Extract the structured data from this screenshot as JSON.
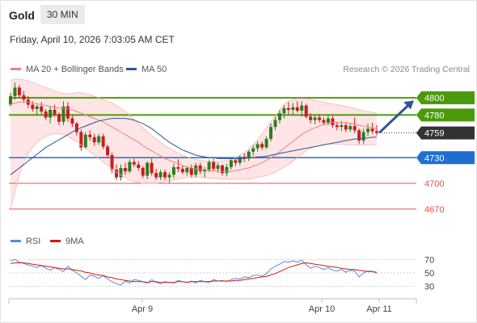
{
  "header": {
    "symbol": "Gold",
    "timeframe": "30 MIN",
    "datetime": "Friday, April 10, 2026 7:03:05 AM CET"
  },
  "legend_main": [
    {
      "label": "MA 20 + Bollinger Bands",
      "color": "#f08080"
    },
    {
      "label": "MA 50",
      "color": "#2f5597"
    }
  ],
  "credit": "Research © 2026 Trading Central",
  "legend_rsi": [
    {
      "label": "RSI",
      "color": "#5b8bd9"
    },
    {
      "label": "9MA",
      "color": "#d11919"
    }
  ],
  "colors": {
    "up": "#2e7d1f",
    "down": "#c61e1e",
    "resistance": "#4a9a0b",
    "support": "#1f6fd1",
    "target": "#e35050",
    "last": "#333333",
    "bands_fill": "#ffe0e0",
    "ma20": "#f08080",
    "ma50": "#2f5597",
    "rsi": "#5b8bd9",
    "rsi_ma": "#d11919",
    "arrow": "#2f5597"
  },
  "chart_data": {
    "type": "candlestick",
    "instrument": "Gold",
    "interval": "30 MIN",
    "x_labels": [
      "Apr 9",
      "Apr 10",
      "Apr 11"
    ],
    "y_range": [
      4650,
      4820
    ],
    "current_price": 4759,
    "levels": [
      {
        "label": "4800",
        "value": 4800,
        "kind": "resistance"
      },
      {
        "label": "4780",
        "value": 4780,
        "kind": "resistance"
      },
      {
        "label": "4759",
        "value": 4759,
        "kind": "last"
      },
      {
        "label": "4730",
        "value": 4730,
        "kind": "support"
      },
      {
        "label": "4700",
        "value": 4700,
        "kind": "target"
      },
      {
        "label": "4670",
        "value": 4670,
        "kind": "target"
      }
    ],
    "candles": [
      [
        4792,
        4806,
        4790,
        4802
      ],
      [
        4802,
        4818,
        4798,
        4812
      ],
      [
        4812,
        4815,
        4800,
        4803
      ],
      [
        4803,
        4808,
        4795,
        4798
      ],
      [
        4798,
        4802,
        4788,
        4792
      ],
      [
        4792,
        4796,
        4784,
        4787
      ],
      [
        4787,
        4792,
        4780,
        4790
      ],
      [
        4790,
        4795,
        4781,
        4784
      ],
      [
        4784,
        4787,
        4774,
        4777
      ],
      [
        4777,
        4790,
        4770,
        4786
      ],
      [
        4786,
        4792,
        4778,
        4781
      ],
      [
        4781,
        4783,
        4768,
        4772
      ],
      [
        4772,
        4796,
        4768,
        4790
      ],
      [
        4790,
        4795,
        4772,
        4776
      ],
      [
        4776,
        4780,
        4766,
        4770
      ],
      [
        4770,
        4772,
        4756,
        4760
      ],
      [
        4760,
        4763,
        4738,
        4742
      ],
      [
        4742,
        4760,
        4740,
        4757
      ],
      [
        4757,
        4762,
        4750,
        4754
      ],
      [
        4754,
        4758,
        4744,
        4748
      ],
      [
        4748,
        4758,
        4745,
        4755
      ],
      [
        4755,
        4758,
        4740,
        4743
      ],
      [
        4743,
        4745,
        4730,
        4733
      ],
      [
        4733,
        4736,
        4712,
        4716
      ],
      [
        4716,
        4722,
        4704,
        4707
      ],
      [
        4707,
        4722,
        4703,
        4718
      ],
      [
        4718,
        4724,
        4710,
        4714
      ],
      [
        4714,
        4728,
        4712,
        4725
      ],
      [
        4725,
        4729,
        4719,
        4722
      ],
      [
        4722,
        4726,
        4715,
        4718
      ],
      [
        4718,
        4720,
        4706,
        4709
      ],
      [
        4709,
        4726,
        4705,
        4724
      ],
      [
        4724,
        4729,
        4709,
        4712
      ],
      [
        4712,
        4717,
        4704,
        4707
      ],
      [
        4707,
        4716,
        4704,
        4713
      ],
      [
        4713,
        4716,
        4704,
        4707
      ],
      [
        4707,
        4713,
        4700,
        4710
      ],
      [
        4710,
        4723,
        4706,
        4719
      ],
      [
        4719,
        4728,
        4713,
        4717
      ],
      [
        4717,
        4721,
        4711,
        4713
      ],
      [
        4713,
        4720,
        4709,
        4718
      ],
      [
        4718,
        4722,
        4707,
        4710
      ],
      [
        4710,
        4724,
        4707,
        4721
      ],
      [
        4721,
        4724,
        4711,
        4714
      ],
      [
        4714,
        4719,
        4706,
        4716
      ],
      [
        4716,
        4728,
        4713,
        4725
      ],
      [
        4725,
        4729,
        4714,
        4717
      ],
      [
        4717,
        4724,
        4712,
        4721
      ],
      [
        4721,
        4722,
        4709,
        4712
      ],
      [
        4712,
        4723,
        4708,
        4719
      ],
      [
        4719,
        4729,
        4716,
        4727
      ],
      [
        4727,
        4730,
        4720,
        4724
      ],
      [
        4724,
        4733,
        4721,
        4731
      ],
      [
        4731,
        4735,
        4725,
        4729
      ],
      [
        4729,
        4739,
        4726,
        4737
      ],
      [
        4737,
        4745,
        4732,
        4741
      ],
      [
        4741,
        4749,
        4737,
        4746
      ],
      [
        4746,
        4749,
        4739,
        4742
      ],
      [
        4742,
        4755,
        4740,
        4752
      ],
      [
        4752,
        4770,
        4749,
        4766
      ],
      [
        4766,
        4778,
        4762,
        4774
      ],
      [
        4774,
        4786,
        4770,
        4782
      ],
      [
        4782,
        4792,
        4776,
        4788
      ],
      [
        4788,
        4795,
        4781,
        4786
      ],
      [
        4786,
        4794,
        4780,
        4789
      ],
      [
        4789,
        4796,
        4783,
        4785
      ],
      [
        4785,
        4796,
        4778,
        4791
      ],
      [
        4791,
        4793,
        4776,
        4778
      ],
      [
        4778,
        4782,
        4770,
        4774
      ],
      [
        4774,
        4780,
        4769,
        4777
      ],
      [
        4777,
        4781,
        4771,
        4774
      ],
      [
        4774,
        4777,
        4768,
        4771
      ],
      [
        4771,
        4780,
        4768,
        4776
      ],
      [
        4776,
        4779,
        4765,
        4768
      ],
      [
        4768,
        4772,
        4762,
        4766
      ],
      [
        4766,
        4773,
        4761,
        4768
      ],
      [
        4768,
        4771,
        4760,
        4763
      ],
      [
        4763,
        4770,
        4760,
        4767
      ],
      [
        4767,
        4777,
        4759,
        4762
      ],
      [
        4762,
        4764,
        4746,
        4750
      ],
      [
        4750,
        4764,
        4746,
        4760
      ],
      [
        4760,
        4770,
        4755,
        4764
      ],
      [
        4764,
        4771,
        4758,
        4761
      ],
      [
        4761,
        4768,
        4756,
        4759
      ]
    ],
    "ma20": [
      4792,
      4794,
      4795,
      4795,
      4795,
      4794,
      4793,
      4792,
      4791,
      4790,
      4789,
      4788,
      4788,
      4787,
      4786,
      4784,
      4782,
      4780,
      4778,
      4776,
      4774,
      4772,
      4769,
      4766,
      4763,
      4760,
      4757,
      4754,
      4751,
      4748,
      4744,
      4741,
      4738,
      4735,
      4732,
      4729,
      4727,
      4725,
      4723,
      4721,
      4719,
      4718,
      4717,
      4716,
      4716,
      4715,
      4715,
      4715,
      4714,
      4714,
      4714,
      4715,
      4716,
      4717,
      4718,
      4720,
      4722,
      4724,
      4727,
      4730,
      4733,
      4737,
      4741,
      4745,
      4749,
      4753,
      4757,
      4760,
      4763,
      4765,
      4767,
      4769,
      4770,
      4771,
      4771,
      4771,
      4771,
      4770,
      4769,
      4768,
      4767,
      4766,
      4765,
      4764
    ],
    "bb_upper": [
      4820,
      4822,
      4822,
      4821,
      4820,
      4818,
      4816,
      4814,
      4812,
      4810,
      4808,
      4806,
      4805,
      4805,
      4805,
      4806,
      4806,
      4805,
      4804,
      4802,
      4800,
      4798,
      4796,
      4794,
      4791,
      4788,
      4784,
      4780,
      4775,
      4770,
      4765,
      4760,
      4756,
      4752,
      4748,
      4744,
      4741,
      4738,
      4735,
      4733,
      4731,
      4729,
      4728,
      4727,
      4726,
      4726,
      4726,
      4726,
      4726,
      4727,
      4728,
      4730,
      4733,
      4736,
      4740,
      4745,
      4751,
      4758,
      4765,
      4772,
      4779,
      4786,
      4792,
      4796,
      4798,
      4799,
      4799,
      4799,
      4798,
      4797,
      4796,
      4795,
      4794,
      4793,
      4792,
      4791,
      4790,
      4789,
      4788,
      4786,
      4785,
      4784,
      4783,
      4782
    ],
    "bb_lower": [
      4670,
      4690,
      4710,
      4725,
      4735,
      4742,
      4748,
      4752,
      4755,
      4757,
      4758,
      4758,
      4757,
      4755,
      4752,
      4749,
      4745,
      4741,
      4737,
      4733,
      4729,
      4725,
      4721,
      4717,
      4713,
      4710,
      4707,
      4704,
      4702,
      4701,
      4700,
      4700,
      4700,
      4700,
      4701,
      4702,
      4703,
      4704,
      4705,
      4706,
      4707,
      4707,
      4707,
      4707,
      4707,
      4706,
      4706,
      4706,
      4705,
      4705,
      4705,
      4705,
      4705,
      4705,
      4705,
      4706,
      4707,
      4708,
      4709,
      4711,
      4713,
      4716,
      4719,
      4722,
      4726,
      4730,
      4734,
      4738,
      4741,
      4743,
      4744,
      4745,
      4746,
      4746,
      4746,
      4746,
      4745,
      4745,
      4745,
      4745,
      4745,
      4745,
      4745,
      4745
    ],
    "ma50": [
      4710,
      4714,
      4718,
      4722,
      4726,
      4730,
      4734,
      4738,
      4742,
      4745,
      4748,
      4751,
      4754,
      4757,
      4760,
      4763,
      4765,
      4767,
      4769,
      4771,
      4773,
      4774,
      4775,
      4776,
      4776,
      4776,
      4776,
      4775,
      4774,
      4772,
      4770,
      4767,
      4764,
      4760,
      4756,
      4752,
      4748,
      4745,
      4742,
      4739,
      4737,
      4735,
      4733,
      4732,
      4731,
      4730,
      4730,
      4729,
      4729,
      4729,
      4729,
      4729,
      4729,
      4729,
      4730,
      4730,
      4731,
      4731,
      4732,
      4733,
      4734,
      4735,
      4736,
      4737,
      4738,
      4739,
      4740,
      4741,
      4742,
      4743,
      4744,
      4745,
      4746,
      4747,
      4748,
      4749,
      4750,
      4751,
      4752,
      4752,
      4753,
      4753,
      4754,
      4754
    ],
    "rsi": {
      "y_range": [
        20,
        80
      ],
      "ticks": [
        "70",
        "50",
        "30"
      ],
      "values": [
        68,
        70,
        66,
        64,
        62,
        60,
        58,
        61,
        57,
        54,
        58,
        55,
        52,
        60,
        54,
        50,
        45,
        40,
        47,
        45,
        42,
        46,
        41,
        37,
        34,
        32,
        38,
        35,
        40,
        39,
        37,
        35,
        40,
        36,
        34,
        37,
        36,
        35,
        39,
        37,
        36,
        38,
        35,
        39,
        37,
        36,
        40,
        38,
        39,
        37,
        40,
        42,
        41,
        44,
        43,
        46,
        47,
        45,
        49,
        56,
        60,
        63,
        67,
        66,
        68,
        66,
        69,
        62,
        57,
        60,
        58,
        55,
        58,
        54,
        53,
        55,
        51,
        54,
        53,
        44,
        50,
        53,
        52,
        50
      ],
      "ma": [
        64,
        65,
        65,
        65,
        64,
        63,
        62,
        61,
        60,
        59,
        58,
        57,
        56,
        56,
        55,
        54,
        53,
        51,
        50,
        48,
        47,
        46,
        44,
        43,
        41,
        40,
        39,
        38,
        37,
        37,
        37,
        36,
        37,
        37,
        36,
        36,
        36,
        36,
        37,
        37,
        36,
        37,
        37,
        37,
        37,
        37,
        38,
        38,
        38,
        38,
        38,
        39,
        39,
        40,
        41,
        42,
        43,
        44,
        45,
        47,
        49,
        52,
        55,
        58,
        60,
        62,
        64,
        65,
        64,
        63,
        62,
        61,
        60,
        59,
        58,
        57,
        56,
        55,
        55,
        54,
        53,
        52,
        52,
        51
      ]
    }
  }
}
